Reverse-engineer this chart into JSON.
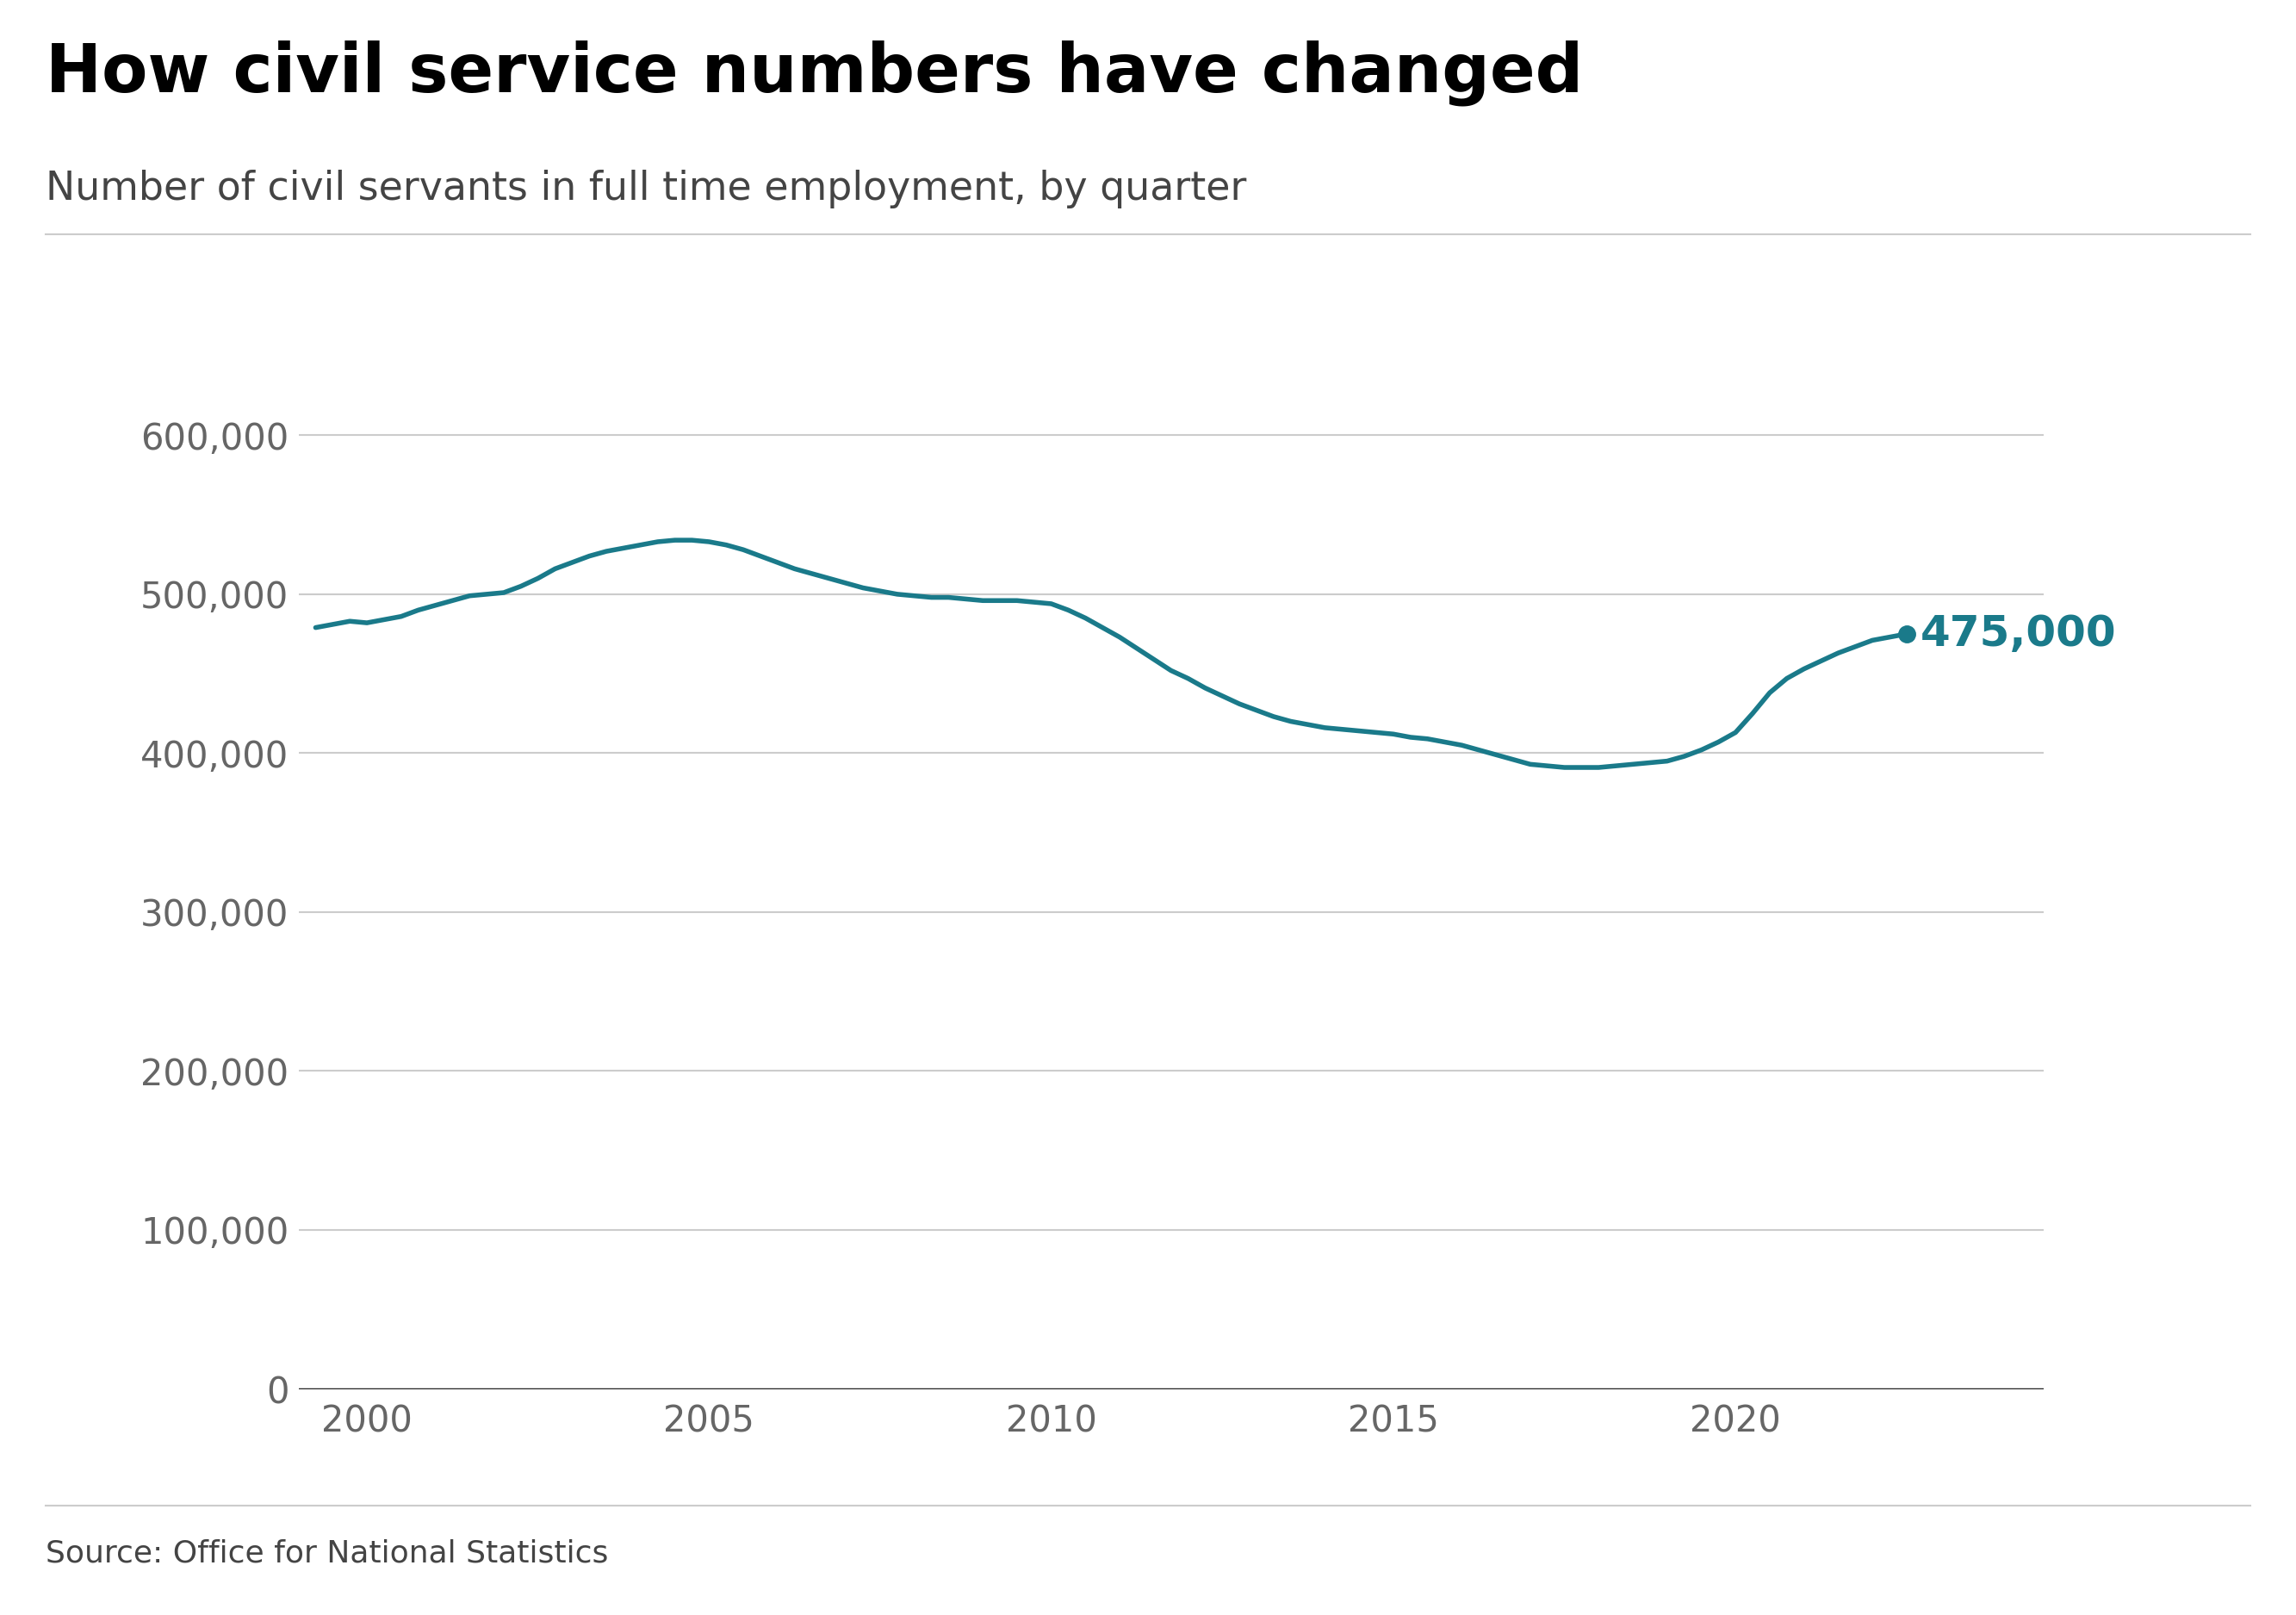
{
  "title": "How civil service numbers have changed",
  "subtitle": "Number of civil servants in full time employment, by quarter",
  "source": "Source: Office for National Statistics",
  "line_color": "#1a7a8a",
  "annotation_color": "#1a7a8a",
  "annotation_value": "475,000",
  "background_color": "#ffffff",
  "grid_color": "#cccccc",
  "tick_color": "#666666",
  "title_color": "#000000",
  "subtitle_color": "#444444",
  "ylim": [
    0,
    630000
  ],
  "yticks": [
    0,
    100000,
    200000,
    300000,
    400000,
    500000,
    600000
  ],
  "xlim": [
    1999.0,
    2024.5
  ],
  "xticks": [
    2000,
    2005,
    2010,
    2015,
    2020
  ],
  "data": [
    [
      1999.25,
      479000
    ],
    [
      1999.5,
      481000
    ],
    [
      1999.75,
      483000
    ],
    [
      2000.0,
      482000
    ],
    [
      2000.25,
      484000
    ],
    [
      2000.5,
      486000
    ],
    [
      2000.75,
      490000
    ],
    [
      2001.0,
      493000
    ],
    [
      2001.25,
      496000
    ],
    [
      2001.5,
      499000
    ],
    [
      2001.75,
      500000
    ],
    [
      2002.0,
      501000
    ],
    [
      2002.25,
      505000
    ],
    [
      2002.5,
      510000
    ],
    [
      2002.75,
      516000
    ],
    [
      2003.0,
      520000
    ],
    [
      2003.25,
      524000
    ],
    [
      2003.5,
      527000
    ],
    [
      2003.75,
      529000
    ],
    [
      2004.0,
      531000
    ],
    [
      2004.25,
      533000
    ],
    [
      2004.5,
      534000
    ],
    [
      2004.75,
      534000
    ],
    [
      2005.0,
      533000
    ],
    [
      2005.25,
      531000
    ],
    [
      2005.5,
      528000
    ],
    [
      2005.75,
      524000
    ],
    [
      2006.0,
      520000
    ],
    [
      2006.25,
      516000
    ],
    [
      2006.5,
      513000
    ],
    [
      2006.75,
      510000
    ],
    [
      2007.0,
      507000
    ],
    [
      2007.25,
      504000
    ],
    [
      2007.5,
      502000
    ],
    [
      2007.75,
      500000
    ],
    [
      2008.0,
      499000
    ],
    [
      2008.25,
      498000
    ],
    [
      2008.5,
      498000
    ],
    [
      2008.75,
      497000
    ],
    [
      2009.0,
      496000
    ],
    [
      2009.25,
      496000
    ],
    [
      2009.5,
      496000
    ],
    [
      2009.75,
      495000
    ],
    [
      2010.0,
      494000
    ],
    [
      2010.25,
      490000
    ],
    [
      2010.5,
      485000
    ],
    [
      2010.75,
      479000
    ],
    [
      2011.0,
      473000
    ],
    [
      2011.25,
      466000
    ],
    [
      2011.5,
      459000
    ],
    [
      2011.75,
      452000
    ],
    [
      2012.0,
      447000
    ],
    [
      2012.25,
      441000
    ],
    [
      2012.5,
      436000
    ],
    [
      2012.75,
      431000
    ],
    [
      2013.0,
      427000
    ],
    [
      2013.25,
      423000
    ],
    [
      2013.5,
      420000
    ],
    [
      2013.75,
      418000
    ],
    [
      2014.0,
      416000
    ],
    [
      2014.25,
      415000
    ],
    [
      2014.5,
      414000
    ],
    [
      2014.75,
      413000
    ],
    [
      2015.0,
      412000
    ],
    [
      2015.25,
      410000
    ],
    [
      2015.5,
      409000
    ],
    [
      2015.75,
      407000
    ],
    [
      2016.0,
      405000
    ],
    [
      2016.25,
      402000
    ],
    [
      2016.5,
      399000
    ],
    [
      2016.75,
      396000
    ],
    [
      2017.0,
      393000
    ],
    [
      2017.25,
      392000
    ],
    [
      2017.5,
      391000
    ],
    [
      2017.75,
      391000
    ],
    [
      2018.0,
      391000
    ],
    [
      2018.25,
      392000
    ],
    [
      2018.5,
      393000
    ],
    [
      2018.75,
      394000
    ],
    [
      2019.0,
      395000
    ],
    [
      2019.25,
      398000
    ],
    [
      2019.5,
      402000
    ],
    [
      2019.75,
      407000
    ],
    [
      2020.0,
      413000
    ],
    [
      2020.25,
      425000
    ],
    [
      2020.5,
      438000
    ],
    [
      2020.75,
      447000
    ],
    [
      2021.0,
      453000
    ],
    [
      2021.25,
      458000
    ],
    [
      2021.5,
      463000
    ],
    [
      2021.75,
      467000
    ],
    [
      2022.0,
      471000
    ],
    [
      2022.25,
      473000
    ],
    [
      2022.5,
      475000
    ]
  ]
}
